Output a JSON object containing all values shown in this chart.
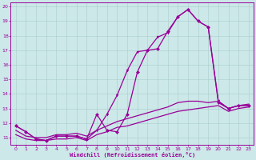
{
  "xlabel": "Windchill (Refroidissement éolien,°C)",
  "background_color": "#cce8e8",
  "line_color": "#990099",
  "grid_color": "#aacccc",
  "xlim": [
    -0.5,
    23.5
  ],
  "ylim": [
    10.5,
    20.3
  ],
  "xticks": [
    0,
    1,
    2,
    3,
    4,
    5,
    6,
    7,
    8,
    9,
    10,
    11,
    12,
    13,
    14,
    15,
    16,
    17,
    18,
    19,
    20,
    21,
    22,
    23
  ],
  "yticks": [
    11,
    12,
    13,
    14,
    15,
    16,
    17,
    18,
    19,
    20
  ],
  "line1_x": [
    0,
    1,
    2,
    3,
    4,
    5,
    6,
    7,
    8,
    9,
    10,
    11,
    12,
    13,
    14,
    15,
    16,
    17,
    18,
    19,
    20,
    21,
    22,
    23
  ],
  "line1_y": [
    11.8,
    11.4,
    10.9,
    10.8,
    11.1,
    11.1,
    11.1,
    10.9,
    12.6,
    11.5,
    11.4,
    12.6,
    15.5,
    17.0,
    17.1,
    18.3,
    19.3,
    19.8,
    19.0,
    18.6,
    13.4,
    13.0,
    13.2,
    13.2
  ],
  "line2_x": [
    0,
    1,
    2,
    3,
    4,
    5,
    6,
    7,
    8,
    9,
    10,
    11,
    12,
    13,
    14,
    15,
    16,
    17,
    18,
    19,
    20,
    21,
    22,
    23
  ],
  "line2_y": [
    11.8,
    11.4,
    10.9,
    10.8,
    11.1,
    11.1,
    11.1,
    10.9,
    11.5,
    12.6,
    13.9,
    15.6,
    16.9,
    17.0,
    17.9,
    18.2,
    19.3,
    19.8,
    19.0,
    18.6,
    13.5,
    13.0,
    13.2,
    13.2
  ],
  "line3_x": [
    0,
    1,
    2,
    3,
    4,
    5,
    6,
    7,
    8,
    9,
    10,
    11,
    12,
    13,
    14,
    15,
    16,
    17,
    18,
    19,
    20,
    21,
    22,
    23
  ],
  "line3_y": [
    11.5,
    11.1,
    11.0,
    11.0,
    11.2,
    11.2,
    11.3,
    11.1,
    11.5,
    11.8,
    12.1,
    12.3,
    12.5,
    12.7,
    12.9,
    13.1,
    13.4,
    13.5,
    13.5,
    13.4,
    13.5,
    13.0,
    13.2,
    13.3
  ],
  "line4_x": [
    0,
    1,
    2,
    3,
    4,
    5,
    6,
    7,
    8,
    9,
    10,
    11,
    12,
    13,
    14,
    15,
    16,
    17,
    18,
    19,
    20,
    21,
    22,
    23
  ],
  "line4_y": [
    11.2,
    10.9,
    10.8,
    10.8,
    10.9,
    10.9,
    11.0,
    10.8,
    11.2,
    11.4,
    11.7,
    11.8,
    12.0,
    12.2,
    12.4,
    12.6,
    12.8,
    12.9,
    13.0,
    13.1,
    13.2,
    12.8,
    13.0,
    13.1
  ],
  "marker_size": 2.0,
  "line_width": 0.9
}
